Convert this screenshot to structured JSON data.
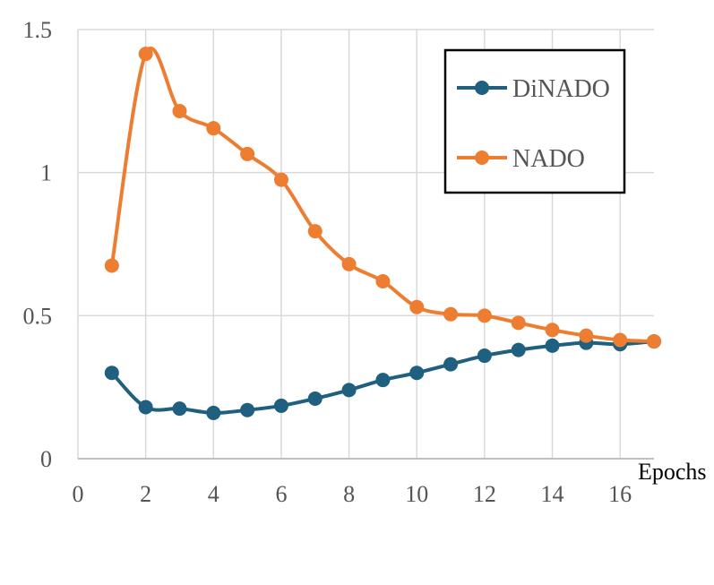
{
  "chart_data": {
    "type": "line",
    "title": "",
    "xlabel": "Epochs",
    "ylabel": "",
    "xlim": [
      0,
      17
    ],
    "ylim": [
      0,
      1.5
    ],
    "x_ticks": [
      0,
      2,
      4,
      6,
      8,
      10,
      12,
      14,
      16
    ],
    "x_tick_labels": [
      "0",
      "2",
      "4",
      "6",
      "8",
      "10",
      "12",
      "14",
      "16"
    ],
    "y_ticks": [
      0,
      0.5,
      1,
      1.5
    ],
    "y_tick_labels": [
      "0",
      "0.5",
      "1",
      "1.5"
    ],
    "grid": true,
    "legend_position": "top-right",
    "x": [
      1,
      2,
      3,
      4,
      5,
      6,
      7,
      8,
      9,
      10,
      11,
      12,
      13,
      14,
      15,
      16,
      17
    ],
    "series": [
      {
        "name": "DiNADO",
        "color": "#1f5f7f",
        "values": [
          0.3,
          0.18,
          0.175,
          0.16,
          0.17,
          0.185,
          0.21,
          0.24,
          0.275,
          0.3,
          0.33,
          0.36,
          0.38,
          0.395,
          0.405,
          0.4,
          0.41
        ]
      },
      {
        "name": "NADO",
        "color": "#ed7d31",
        "values": [
          0.675,
          1.415,
          1.215,
          1.155,
          1.065,
          0.975,
          0.795,
          0.68,
          0.62,
          0.53,
          0.505,
          0.5,
          0.475,
          0.45,
          0.43,
          0.415,
          0.41
        ]
      }
    ]
  }
}
